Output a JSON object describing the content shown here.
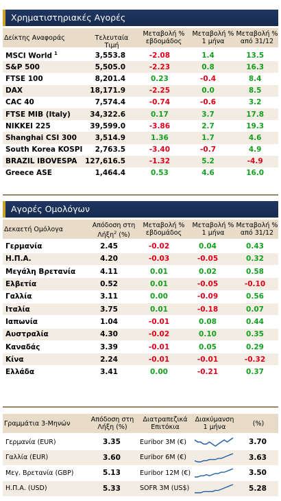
{
  "equities": {
    "title": "Χρηματιστηριακές Αγορές",
    "headers": {
      "name": "Δείκτης Αναφοράς",
      "price": "Τελευταία Τιμή",
      "week_l1": "Μεταβολή %",
      "week_l2": "εβδομάδος",
      "month_l1": "Μεταβολή %",
      "month_l2": "1 μήνα",
      "ytd_l1": "Μεταβολή %",
      "ytd_l2": "από 31/12"
    },
    "rows": [
      {
        "name": "MSCI World",
        "sup": "1",
        "price": "3,553.8",
        "week": "-2.08",
        "month": "1.4",
        "ytd": "13.5"
      },
      {
        "name": "S&P 500",
        "sup": "",
        "price": "5,505.0",
        "week": "-2.23",
        "month": "0.8",
        "ytd": "16.3"
      },
      {
        "name": "FTSE 100",
        "sup": "",
        "price": "8,201.4",
        "week": "0.23",
        "month": "-0.4",
        "ytd": "8.4"
      },
      {
        "name": "DAX",
        "sup": "",
        "price": "18,171.9",
        "week": "-2.25",
        "month": "0.0",
        "ytd": "8.5"
      },
      {
        "name": "CAC 40",
        "sup": "",
        "price": "7,574.4",
        "week": "-0.74",
        "month": "-0.6",
        "ytd": "3.2"
      },
      {
        "name": "FTSE MIB (Italy)",
        "sup": "",
        "price": "34,322.6",
        "week": "0.17",
        "month": "3.7",
        "ytd": "17.8"
      },
      {
        "name": "NIKKEI 225",
        "sup": "",
        "price": "39,599.0",
        "week": "-3.86",
        "month": "2.7",
        "ytd": "19.3"
      },
      {
        "name": "Shanghai CSI 300",
        "sup": "",
        "price": "3,514.9",
        "week": "1.36",
        "month": "1.7",
        "ytd": "4.6"
      },
      {
        "name": "South Korea KOSPI",
        "sup": "",
        "price": "2,763.5",
        "week": "-3.40",
        "month": "-0.7",
        "ytd": "4.9"
      },
      {
        "name": "BRAZIL IBOVESPA",
        "sup": "",
        "price": "127,616.5",
        "week": "-1.32",
        "month": "5.2",
        "ytd": "-4.9"
      },
      {
        "name": "Greece ASE",
        "sup": "",
        "price": "1,464.4",
        "week": "0.53",
        "month": "4.6",
        "ytd": "16.0"
      }
    ]
  },
  "bonds": {
    "title": "Αγορές Ομολόγων",
    "headers": {
      "name": "Δεκαετή Ομόλογα",
      "yield_l1": "Απόδοση στη",
      "yield_l2": "Λήξη",
      "yield_sup": "2",
      "yield_l2b": " (%)",
      "week_l1": "Μεταβολή %",
      "week_l2": "εβδομάδος",
      "month_l1": "Μεταβολή %",
      "month_l2": "1 μήνα",
      "ytd_l1": "Μεταβολή %",
      "ytd_l2": "από 31/12"
    },
    "rows": [
      {
        "name": "Γερμανία",
        "yield": "2.45",
        "week": "-0.02",
        "month": "0.04",
        "ytd": "0.43"
      },
      {
        "name": "Η.Π.Α.",
        "yield": "4.20",
        "week": "-0.03",
        "month": "-0.05",
        "ytd": "0.32"
      },
      {
        "name": "Μεγάλη Βρετανία",
        "yield": "4.11",
        "week": "0.01",
        "month": "0.02",
        "ytd": "0.58"
      },
      {
        "name": "Ελβετία",
        "yield": "0.52",
        "week": "0.01",
        "month": "-0.05",
        "ytd": "-0.10"
      },
      {
        "name": "Γαλλία",
        "yield": "3.11",
        "week": "0.00",
        "month": "-0.09",
        "ytd": "0.56"
      },
      {
        "name": "Ιταλία",
        "yield": "3.75",
        "week": "0.01",
        "month": "-0.18",
        "ytd": "0.07"
      },
      {
        "name": "Ιαπωνία",
        "yield": "1.04",
        "week": "-0.01",
        "month": "0.08",
        "ytd": "0.44"
      },
      {
        "name": "Αυστραλία",
        "yield": "4.30",
        "week": "-0.02",
        "month": "0.10",
        "ytd": "0.35"
      },
      {
        "name": "Καναδάς",
        "yield": "3.39",
        "week": "-0.01",
        "month": "0.05",
        "ytd": "0.29"
      },
      {
        "name": "Κίνα",
        "yield": "2.24",
        "week": "-0.01",
        "month": "-0.01",
        "ytd": "-0.32"
      },
      {
        "name": "Ελλάδα",
        "yield": "3.41",
        "week": "0.00",
        "month": "-0.21",
        "ytd": "0.37"
      }
    ]
  },
  "bills": {
    "headers": {
      "name": "Γραμμάτια 3-Μηνών",
      "yield_l1": "Απόδοση στη",
      "yield_l2": "Λήξη (%)",
      "ib_l1": "Διατραπεζικά",
      "ib_l2": "Επιτόκια",
      "trend_l1": "Διακύμανση",
      "trend_l2": "1 μήνα",
      "pct": "(%)"
    },
    "rows": [
      {
        "name": "Γερμανία (EUR)",
        "yield": "3.35",
        "rate_name": "Euribor 3M (€)",
        "rate": "3.70",
        "trend": [
          6,
          5,
          5,
          4,
          4,
          5,
          4,
          3,
          4,
          5,
          6,
          5,
          6,
          7
        ]
      },
      {
        "name": "Γαλλία (EUR)",
        "yield": "3.60",
        "rate_name": "Euribor 6M (€)",
        "rate": "3.63",
        "trend": [
          3,
          2,
          2,
          3,
          3,
          4,
          4,
          4,
          5,
          5,
          6,
          7,
          8,
          9
        ]
      },
      {
        "name": "Μεγ. Βρετανία (GBP)",
        "yield": "5.13",
        "rate_name": "Euribor 12M (€)",
        "rate": "3.50",
        "trend": [
          2,
          2,
          3,
          3,
          4,
          3,
          4,
          5,
          5,
          6,
          6,
          7,
          8,
          9
        ]
      },
      {
        "name": "Η.Π.Α. (USD)",
        "yield": "5.33",
        "rate_name": "SOFR 3M (US$)",
        "rate": "5.28",
        "trend": [
          2,
          2,
          2,
          3,
          3,
          3,
          3,
          4,
          4,
          5,
          6,
          7,
          8,
          9
        ]
      }
    ]
  },
  "colors": {
    "negative": "#e0001b",
    "positive": "#14a01e",
    "header_bg": "#1f3763",
    "accent": "#c9a227",
    "shade": "#f2ece2",
    "spark": "#1f5fa8"
  }
}
